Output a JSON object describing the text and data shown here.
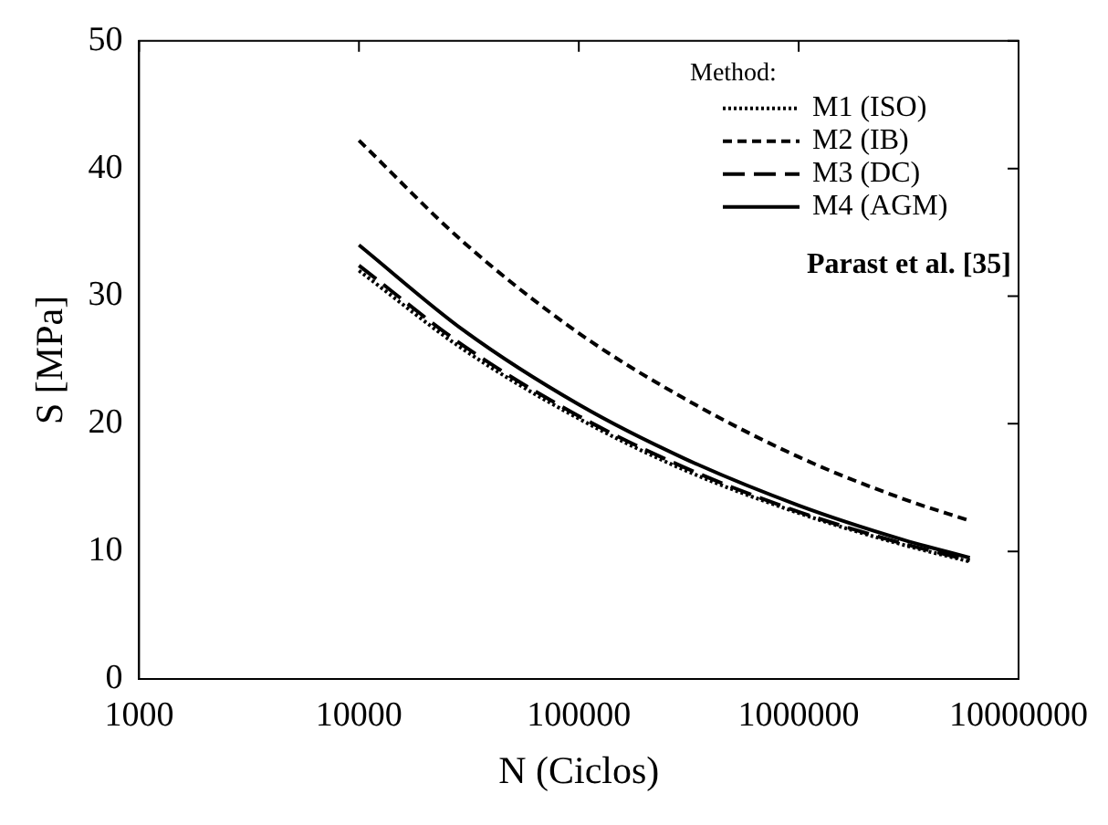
{
  "chart_data": {
    "type": "line",
    "xlabel": "N (Ciclos)",
    "ylabel": "S [MPa]",
    "legend_title": "Method:",
    "log": "x",
    "grid": false,
    "legend": "top right",
    "marker": "none",
    "xlim": [
      1000,
      10000000
    ],
    "xticks": [
      1000,
      10000,
      100000,
      1000000,
      10000000
    ],
    "ylim": [
      0,
      50
    ],
    "yticks": [
      0,
      10,
      20,
      30,
      40,
      50
    ],
    "x": [
      10000,
      30000,
      100000,
      300000,
      1000000,
      3000000,
      6000000
    ],
    "series": [
      {
        "name": "M1 (ISO)",
        "color": "#000000",
        "line_style": "dotted",
        "values": [
          32,
          25.8,
          20.4,
          16.4,
          13.0,
          10.5,
          9.2
        ]
      },
      {
        "name": "M2 (IB)",
        "color": "#000000",
        "line_style": "dashed",
        "values": [
          42.2,
          34.2,
          27.1,
          22.0,
          17.4,
          14.1,
          12.4
        ]
      },
      {
        "name": "M3 (DC)",
        "color": "#000000",
        "line_style": "longdash",
        "values": [
          32.4,
          26.1,
          20.6,
          16.6,
          13.1,
          10.6,
          9.3
        ]
      },
      {
        "name": "M4 (AGM)",
        "color": "#000000",
        "line_style": "solid",
        "values": [
          34,
          27.3,
          21.5,
          17.3,
          13.6,
          10.9,
          9.5
        ]
      }
    ],
    "annotations": [
      "Parast et al. [35]"
    ]
  }
}
